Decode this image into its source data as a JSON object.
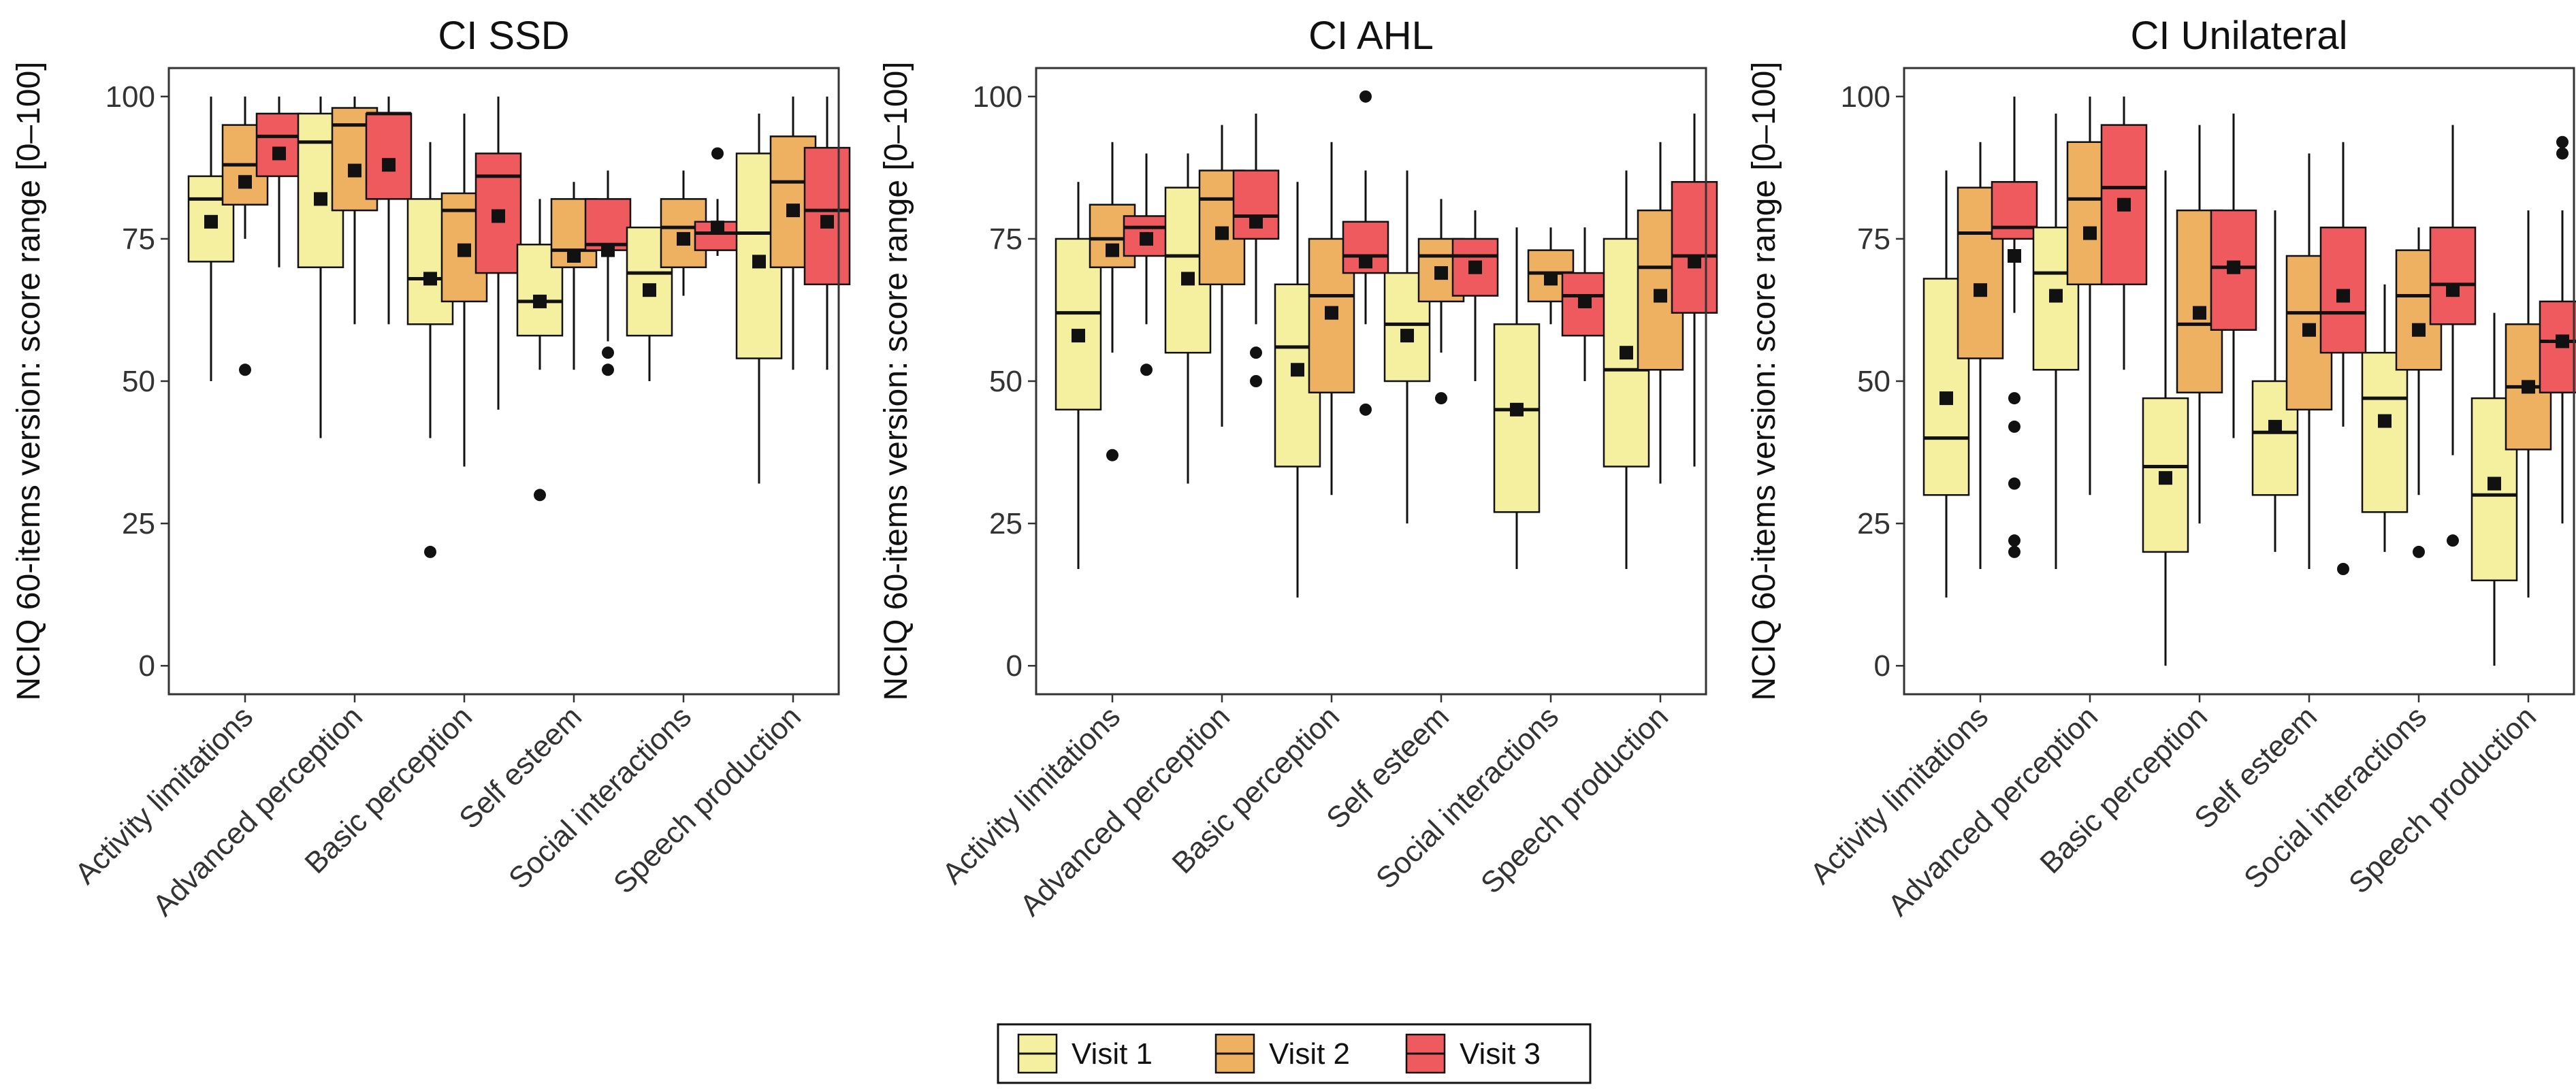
{
  "chart_data": [
    {
      "type": "boxplot",
      "title": "CI SSD",
      "ylabel": "NCIQ 60-items version: score range [0–100]",
      "ylim": [
        -5,
        105
      ],
      "yticks": [
        0,
        25,
        50,
        75,
        100
      ],
      "categories": [
        "Activity limitations",
        "Advanced perception",
        "Basic perception",
        "Self esteem",
        "Social interactions",
        "Speech production"
      ],
      "series": [
        {
          "name": "Visit 1",
          "boxes": [
            {
              "min": 50,
              "q1": 71,
              "median": 82,
              "q3": 86,
              "max": 100,
              "mean": 78,
              "outliers": []
            },
            {
              "min": 40,
              "q1": 70,
              "median": 92,
              "q3": 97,
              "max": 100,
              "mean": 82,
              "outliers": []
            },
            {
              "min": 40,
              "q1": 60,
              "median": 68,
              "q3": 82,
              "max": 92,
              "mean": 68,
              "outliers": [
                20
              ]
            },
            {
              "min": 52,
              "q1": 58,
              "median": 64,
              "q3": 74,
              "max": 82,
              "mean": 64,
              "outliers": [
                30
              ]
            },
            {
              "min": 50,
              "q1": 58,
              "median": 69,
              "q3": 77,
              "max": 77,
              "mean": 66,
              "outliers": []
            },
            {
              "min": 32,
              "q1": 54,
              "median": 76,
              "q3": 90,
              "max": 97,
              "mean": 71,
              "outliers": []
            }
          ]
        },
        {
          "name": "Visit 2",
          "boxes": [
            {
              "min": 75,
              "q1": 81,
              "median": 88,
              "q3": 95,
              "max": 100,
              "mean": 85,
              "outliers": [
                52
              ]
            },
            {
              "min": 60,
              "q1": 80,
              "median": 95,
              "q3": 98,
              "max": 100,
              "mean": 87,
              "outliers": []
            },
            {
              "min": 35,
              "q1": 64,
              "median": 80,
              "q3": 83,
              "max": 97,
              "mean": 73,
              "outliers": []
            },
            {
              "min": 52,
              "q1": 70,
              "median": 73,
              "q3": 82,
              "max": 85,
              "mean": 72,
              "outliers": []
            },
            {
              "min": 65,
              "q1": 70,
              "median": 77,
              "q3": 82,
              "max": 87,
              "mean": 75,
              "outliers": []
            },
            {
              "min": 52,
              "q1": 70,
              "median": 85,
              "q3": 93,
              "max": 100,
              "mean": 80,
              "outliers": []
            }
          ]
        },
        {
          "name": "Visit 3",
          "boxes": [
            {
              "min": 70,
              "q1": 86,
              "median": 93,
              "q3": 97,
              "max": 100,
              "mean": 90,
              "outliers": []
            },
            {
              "min": 60,
              "q1": 82,
              "median": 97,
              "q3": 97,
              "max": 100,
              "mean": 88,
              "outliers": []
            },
            {
              "min": 45,
              "q1": 69,
              "median": 86,
              "q3": 90,
              "max": 100,
              "mean": 79,
              "outliers": []
            },
            {
              "min": 57,
              "q1": 73,
              "median": 74,
              "q3": 82,
              "max": 87,
              "mean": 73,
              "outliers": [
                55,
                52
              ]
            },
            {
              "min": 72,
              "q1": 73,
              "median": 76,
              "q3": 78,
              "max": 82,
              "mean": 77,
              "outliers": [
                90
              ]
            },
            {
              "min": 52,
              "q1": 67,
              "median": 80,
              "q3": 91,
              "max": 100,
              "mean": 78,
              "outliers": []
            }
          ]
        }
      ]
    },
    {
      "type": "boxplot",
      "title": "CI AHL",
      "ylabel": "NCIQ 60-items version: score range [0–100]",
      "ylim": [
        -5,
        105
      ],
      "yticks": [
        0,
        25,
        50,
        75,
        100
      ],
      "categories": [
        "Activity limitations",
        "Advanced perception",
        "Basic perception",
        "Self esteem",
        "Social interactions",
        "Speech production"
      ],
      "series": [
        {
          "name": "Visit 1",
          "boxes": [
            {
              "min": 17,
              "q1": 45,
              "median": 62,
              "q3": 75,
              "max": 85,
              "mean": 58,
              "outliers": []
            },
            {
              "min": 32,
              "q1": 55,
              "median": 72,
              "q3": 84,
              "max": 90,
              "mean": 68,
              "outliers": []
            },
            {
              "min": 12,
              "q1": 35,
              "median": 56,
              "q3": 67,
              "max": 85,
              "mean": 52,
              "outliers": []
            },
            {
              "min": 25,
              "q1": 50,
              "median": 60,
              "q3": 69,
              "max": 87,
              "mean": 58,
              "outliers": []
            },
            {
              "min": 17,
              "q1": 27,
              "median": 45,
              "q3": 60,
              "max": 77,
              "mean": 45,
              "outliers": []
            },
            {
              "min": 17,
              "q1": 35,
              "median": 52,
              "q3": 75,
              "max": 87,
              "mean": 55,
              "outliers": []
            }
          ]
        },
        {
          "name": "Visit 2",
          "boxes": [
            {
              "min": 55,
              "q1": 70,
              "median": 75,
              "q3": 81,
              "max": 92,
              "mean": 73,
              "outliers": [
                37
              ]
            },
            {
              "min": 42,
              "q1": 67,
              "median": 82,
              "q3": 87,
              "max": 95,
              "mean": 76,
              "outliers": []
            },
            {
              "min": 30,
              "q1": 48,
              "median": 65,
              "q3": 75,
              "max": 92,
              "mean": 62,
              "outliers": []
            },
            {
              "min": 55,
              "q1": 64,
              "median": 72,
              "q3": 75,
              "max": 82,
              "mean": 69,
              "outliers": [
                47
              ]
            },
            {
              "min": 60,
              "q1": 64,
              "median": 69,
              "q3": 73,
              "max": 77,
              "mean": 68,
              "outliers": []
            },
            {
              "min": 32,
              "q1": 52,
              "median": 70,
              "q3": 80,
              "max": 92,
              "mean": 65,
              "outliers": []
            }
          ]
        },
        {
          "name": "Visit 3",
          "boxes": [
            {
              "min": 60,
              "q1": 72,
              "median": 77,
              "q3": 79,
              "max": 90,
              "mean": 75,
              "outliers": [
                52
              ]
            },
            {
              "min": 60,
              "q1": 75,
              "median": 79,
              "q3": 87,
              "max": 97,
              "mean": 78,
              "outliers": [
                55,
                50
              ]
            },
            {
              "min": 60,
              "q1": 69,
              "median": 72,
              "q3": 78,
              "max": 87,
              "mean": 71,
              "outliers": [
                100,
                45
              ]
            },
            {
              "min": 50,
              "q1": 65,
              "median": 72,
              "q3": 75,
              "max": 80,
              "mean": 70,
              "outliers": []
            },
            {
              "min": 50,
              "q1": 58,
              "median": 65,
              "q3": 69,
              "max": 77,
              "mean": 64,
              "outliers": []
            },
            {
              "min": 35,
              "q1": 62,
              "median": 72,
              "q3": 85,
              "max": 97,
              "mean": 71,
              "outliers": []
            }
          ]
        }
      ]
    },
    {
      "type": "boxplot",
      "title": "CI Unilateral",
      "ylabel": "NCIQ 60-items version: score range [0–100]",
      "ylim": [
        -5,
        105
      ],
      "yticks": [
        0,
        25,
        50,
        75,
        100
      ],
      "categories": [
        "Activity limitations",
        "Advanced perception",
        "Basic perception",
        "Self esteem",
        "Social interactions",
        "Speech production"
      ],
      "series": [
        {
          "name": "Visit 1",
          "boxes": [
            {
              "min": 12,
              "q1": 30,
              "median": 40,
              "q3": 68,
              "max": 87,
              "mean": 47,
              "outliers": []
            },
            {
              "min": 17,
              "q1": 52,
              "median": 69,
              "q3": 77,
              "max": 97,
              "mean": 65,
              "outliers": []
            },
            {
              "min": 0,
              "q1": 20,
              "median": 35,
              "q3": 47,
              "max": 87,
              "mean": 33,
              "outliers": []
            },
            {
              "min": 20,
              "q1": 30,
              "median": 41,
              "q3": 50,
              "max": 80,
              "mean": 42,
              "outliers": []
            },
            {
              "min": 20,
              "q1": 27,
              "median": 47,
              "q3": 55,
              "max": 67,
              "mean": 43,
              "outliers": []
            },
            {
              "min": 0,
              "q1": 15,
              "median": 30,
              "q3": 47,
              "max": 62,
              "mean": 32,
              "outliers": []
            }
          ]
        },
        {
          "name": "Visit 2",
          "boxes": [
            {
              "min": 17,
              "q1": 54,
              "median": 76,
              "q3": 84,
              "max": 92,
              "mean": 66,
              "outliers": []
            },
            {
              "min": 30,
              "q1": 67,
              "median": 82,
              "q3": 92,
              "max": 100,
              "mean": 76,
              "outliers": []
            },
            {
              "min": 25,
              "q1": 48,
              "median": 60,
              "q3": 80,
              "max": 95,
              "mean": 62,
              "outliers": []
            },
            {
              "min": 17,
              "q1": 45,
              "median": 62,
              "q3": 72,
              "max": 90,
              "mean": 59,
              "outliers": []
            },
            {
              "min": 30,
              "q1": 52,
              "median": 65,
              "q3": 73,
              "max": 77,
              "mean": 59,
              "outliers": [
                20
              ]
            },
            {
              "min": 12,
              "q1": 38,
              "median": 49,
              "q3": 60,
              "max": 80,
              "mean": 49,
              "outliers": []
            }
          ]
        },
        {
          "name": "Visit 3",
          "boxes": [
            {
              "min": 62,
              "q1": 75,
              "median": 77,
              "q3": 85,
              "max": 100,
              "mean": 72,
              "outliers": [
                47,
                42,
                32,
                22,
                20
              ]
            },
            {
              "min": 52,
              "q1": 67,
              "median": 84,
              "q3": 95,
              "max": 100,
              "mean": 81,
              "outliers": []
            },
            {
              "min": 40,
              "q1": 59,
              "median": 70,
              "q3": 80,
              "max": 97,
              "mean": 70,
              "outliers": []
            },
            {
              "min": 42,
              "q1": 55,
              "median": 62,
              "q3": 77,
              "max": 92,
              "mean": 65,
              "outliers": [
                17
              ]
            },
            {
              "min": 37,
              "q1": 60,
              "median": 67,
              "q3": 77,
              "max": 95,
              "mean": 66,
              "outliers": [
                22
              ]
            },
            {
              "min": 25,
              "q1": 48,
              "median": 57,
              "q3": 64,
              "max": 80,
              "mean": 57,
              "outliers": [
                92,
                90
              ]
            }
          ]
        }
      ]
    }
  ],
  "legend": [
    {
      "label": "Visit 1",
      "color": "#F5F0A0"
    },
    {
      "label": "Visit 2",
      "color": "#EEB061"
    },
    {
      "label": "Visit 3",
      "color": "#EF5A5F"
    }
  ]
}
